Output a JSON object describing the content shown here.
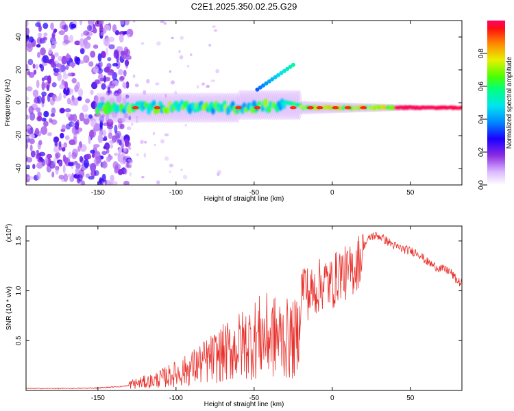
{
  "title": "C2E1.2025.350.02.25.G29",
  "chart_data": [
    {
      "type": "heatmap",
      "title": "C2E1.2025.350.02.25.G29",
      "xlabel": "Height of straight line (km)",
      "ylabel": "Frequency (Hz)",
      "xlim": [
        -196,
        83
      ],
      "ylim": [
        -50,
        50
      ],
      "xticks": [
        -150,
        -100,
        -50,
        0,
        50
      ],
      "yticks": [
        -40,
        -20,
        0,
        20,
        40
      ],
      "colorbar": {
        "label": "Normalized spectral amplitude",
        "range": [
          0,
          1
        ],
        "ticks": [
          0.0,
          0.2,
          0.4,
          0.6,
          0.8
        ]
      },
      "features": {
        "noise_region_end_km": -133,
        "main_trace_freq_hz": -3,
        "branch": {
          "x": [
            -48,
            -25
          ],
          "y": [
            8,
            23
          ]
        }
      }
    },
    {
      "type": "line",
      "xlabel": "Height of straight line (km)",
      "ylabel": "SNR (10 * v/v)",
      "scale_label": "(x10",
      "scale_exp": "4",
      "xlim": [
        -196,
        83
      ],
      "ylim": [
        0,
        1.65
      ],
      "xticks": [
        -150,
        -100,
        -50,
        0,
        50
      ],
      "yticks": [
        0.5,
        1.0,
        1.5
      ],
      "ytick_labels": [
        "0.5",
        "1.0",
        "1.5"
      ],
      "series": [
        {
          "name": "SNR",
          "color": "#e8302b",
          "x": [
            -196,
            -170,
            -150,
            -135,
            -125,
            -115,
            -105,
            -95,
            -85,
            -75,
            -65,
            -55,
            -45,
            -35,
            -25,
            -22,
            -20,
            -18,
            -15,
            -10,
            -5,
            0,
            5,
            10,
            15,
            20,
            25,
            30,
            35,
            40,
            45,
            50,
            55,
            60,
            65,
            70,
            75,
            80,
            83
          ],
          "y": [
            0.02,
            0.02,
            0.025,
            0.04,
            0.06,
            0.08,
            0.12,
            0.16,
            0.22,
            0.28,
            0.34,
            0.4,
            0.46,
            0.45,
            0.42,
            0.45,
            1.05,
            1.15,
            1.0,
            1.08,
            1.15,
            1.12,
            1.25,
            1.22,
            1.3,
            1.45,
            1.55,
            1.55,
            1.5,
            1.45,
            1.42,
            1.4,
            1.38,
            1.3,
            1.25,
            1.22,
            1.2,
            1.1,
            1.07
          ]
        }
      ]
    }
  ]
}
